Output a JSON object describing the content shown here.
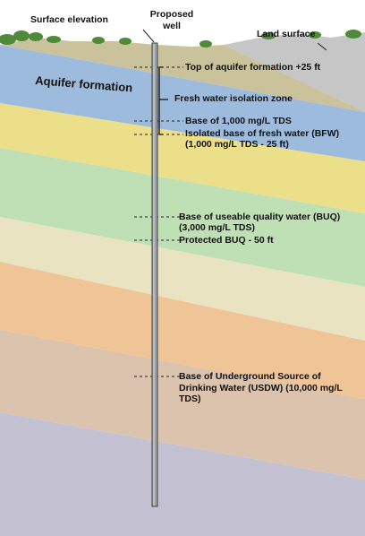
{
  "labels": {
    "surface_elevation": "Surface elevation",
    "proposed_well": "Proposed well",
    "land_surface": "Land surface",
    "aquifer_formation": "Aquifer formation",
    "top_of_aquifer": "Top of aquifer formation +25 ft",
    "fresh_water_zone": "Fresh water isolation zone",
    "base_1000_tds": "Base of 1,000 mg/L TDS",
    "isolated_bfw_line1": "Isolated base of fresh water (BFW)",
    "isolated_bfw_line2": "(1,000 mg/L TDS - 25 ft)",
    "buq_line1": "Base of useable quality water (BUQ)",
    "buq_line2": "(3,000 mg/L TDS)",
    "protected_buq": "Protected BUQ - 50 ft",
    "usdw": "Base of Underground Source of Drinking Water (USDW) (10,000 mg/L TDS)"
  },
  "colors": {
    "sky": "#ffffff",
    "surface_layer": "#c9c29a",
    "aquifer": "#9dbbdc",
    "yellow_layer": "#ecdf8a",
    "green_layer": "#bfe0b4",
    "cream_layer": "#eae3c2",
    "orange_layer": "#efc497",
    "tan_layer": "#dbc3ad",
    "lavender_layer": "#c4c1d2",
    "well_casing": "#9aa0a6"
  }
}
